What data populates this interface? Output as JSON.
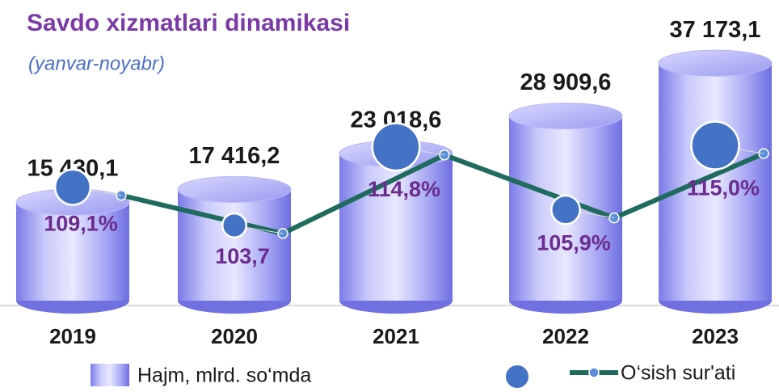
{
  "chart_data": {
    "type": "bar",
    "title": "Savdo xizmatlari dinamikasi",
    "subtitle": "(yanvar-noyabr)",
    "categories": [
      "2019",
      "2020",
      "2021",
      "2022",
      "2023"
    ],
    "ylim": [
      0,
      42000
    ],
    "y2lim": [
      95,
      115
    ],
    "y2ticks": [
      95,
      100,
      105,
      110,
      115
    ],
    "series": [
      {
        "name": "Hajm, mlrd. so‘mda",
        "color": "#8c8cf0",
        "values": [
          15430.1,
          17416.2,
          23018.6,
          28909.6,
          37173.1
        ],
        "value_labels": [
          "15 430,1",
          "17 416,2",
          "23 018,6",
          "28 909,6",
          "37 173,1"
        ]
      },
      {
        "name": "O‘sish sur'ati",
        "type": "line",
        "axis": "y2",
        "color": "#1f6b5e",
        "values": [
          109.1,
          103.7,
          114.8,
          105.9,
          115.0
        ],
        "value_labels": [
          "109,1%",
          "103,7",
          "114,8%",
          "105,9%",
          "115,0%"
        ]
      }
    ]
  }
}
